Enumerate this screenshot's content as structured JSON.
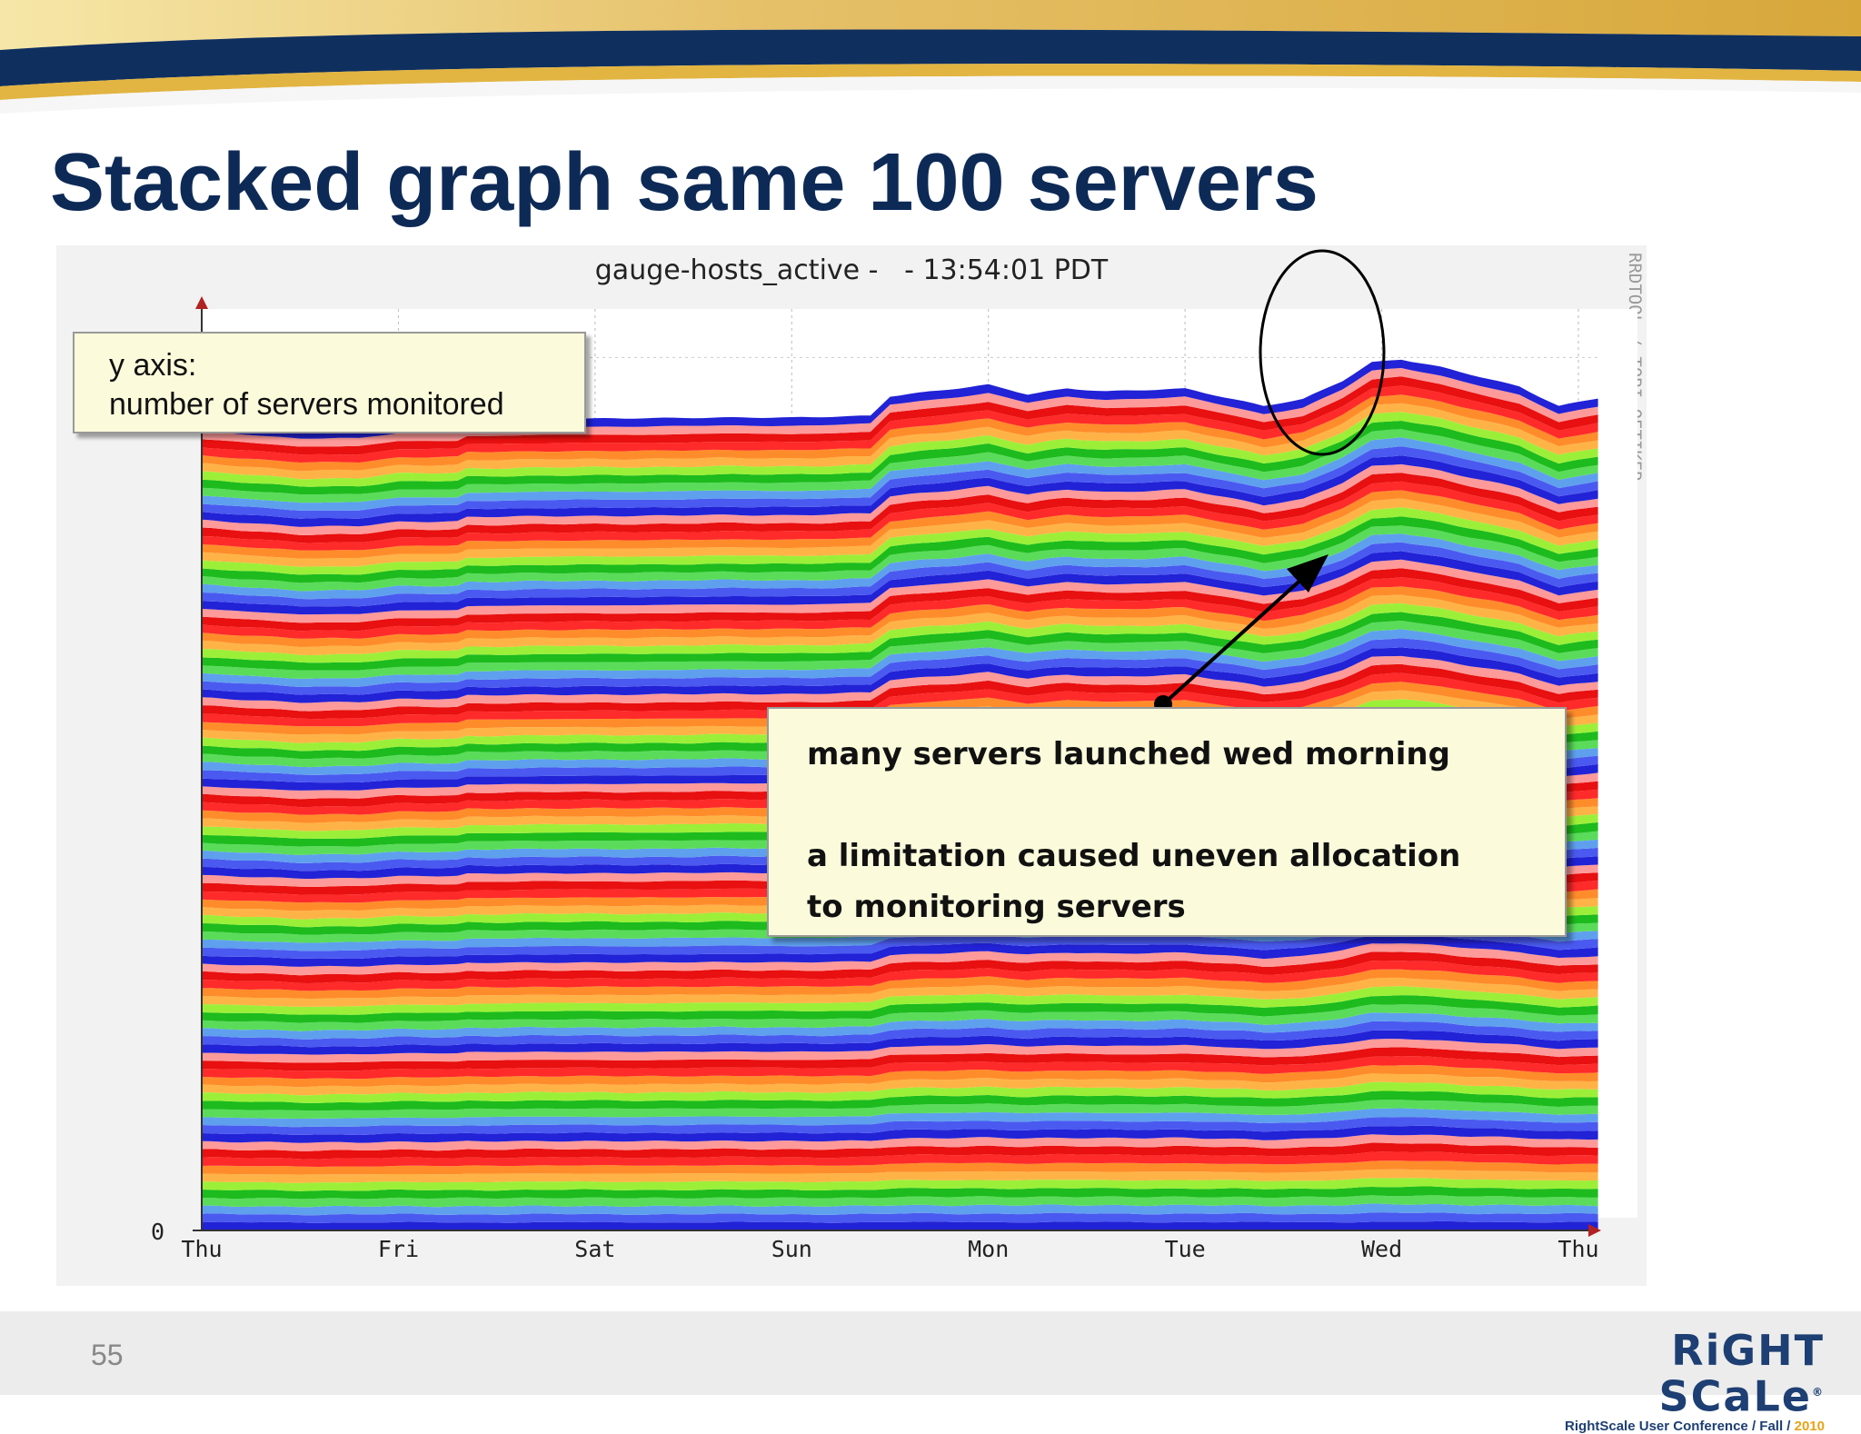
{
  "slide": {
    "title": "Stacked graph same 100 servers",
    "page_number": "55"
  },
  "colors": {
    "title": "#0d2a57",
    "banner_blue": "#0f2f5e",
    "banner_gold": "#f0c040",
    "band_palette": [
      "#2222d6",
      "#4a5af0",
      "#5fa0ee",
      "#5adc5a",
      "#1dbb1d",
      "#9cef38",
      "#ffb347",
      "#ff8c2a",
      "#ff2a2a",
      "#e81010",
      "#ff9a9a"
    ]
  },
  "annotations": {
    "yaxis_note": {
      "line1": "y axis:",
      "line2": "number of servers monitored"
    },
    "launch_note": {
      "line1": "many servers launched wed morning",
      "line2": "a limitation caused uneven allocation",
      "line3": "to monitoring servers"
    }
  },
  "chart_data": {
    "type": "area",
    "title": "gauge-hosts_active -   - 13:54:01 PDT",
    "watermark": "RRDTOOL / TOBI OETIKER",
    "xlabel": "",
    "ylabel": "",
    "y_tick_label": "0",
    "categories": [
      "Thu",
      "Fri",
      "Sat",
      "Sun",
      "Mon",
      "Tue",
      "Wed",
      "Thu"
    ],
    "x_range_days": [
      0,
      7.1
    ],
    "ylim": [
      0,
      950
    ],
    "series_count": 100,
    "stacked": true,
    "grid": true,
    "total": {
      "x_days": [
        0,
        0.5,
        0.8,
        1.0,
        1.3,
        1.34,
        2.0,
        2.6,
        3.0,
        3.4,
        3.5,
        3.8,
        4.0,
        4.2,
        4.4,
        4.6,
        5.0,
        5.4,
        5.6,
        5.8,
        5.95,
        6.1,
        6.3,
        6.7,
        6.9,
        7.1
      ],
      "values": [
        832,
        825,
        825,
        830,
        831,
        836,
        837,
        838,
        838,
        840,
        860,
        867,
        872,
        862,
        868,
        865,
        868,
        850,
        857,
        876,
        895,
        898,
        890,
        870,
        850,
        858
      ]
    },
    "highlight": {
      "label": "many servers launched wed morning",
      "x_days": 5.95,
      "value": 895
    }
  }
}
